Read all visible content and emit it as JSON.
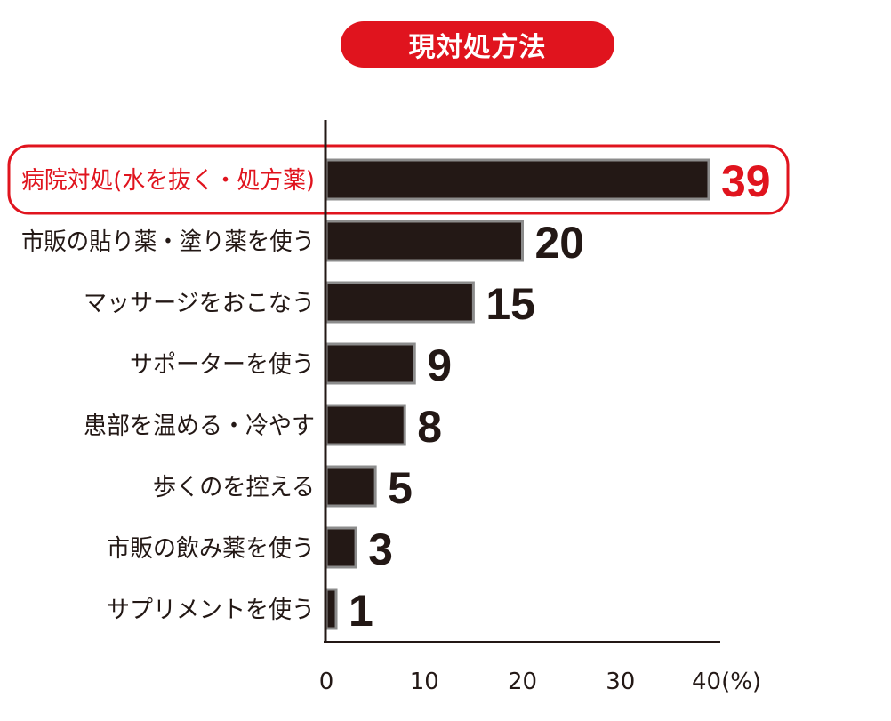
{
  "chart_data": {
    "type": "bar",
    "orientation": "horizontal",
    "title": "現対処方法",
    "categories": [
      "病院対処(水を抜く・処方薬)",
      "市販の貼り薬・塗り薬を使う",
      "マッサージをおこなう",
      "サポーターを使う",
      "患部を温める・冷やす",
      "歩くのを控える",
      "市販の飲み薬を使う",
      "サプリメントを使う"
    ],
    "values": [
      39,
      20,
      15,
      9,
      8,
      5,
      3,
      1
    ],
    "highlight_index": 0,
    "xlim": [
      0,
      40
    ],
    "xticks": [
      "0",
      "10",
      "20",
      "30",
      "40(%)"
    ],
    "grid": false,
    "colors": {
      "bar": "#231815",
      "bar_border": "#8c8c8c",
      "highlight": "#e0141e",
      "text": "#231815"
    }
  }
}
